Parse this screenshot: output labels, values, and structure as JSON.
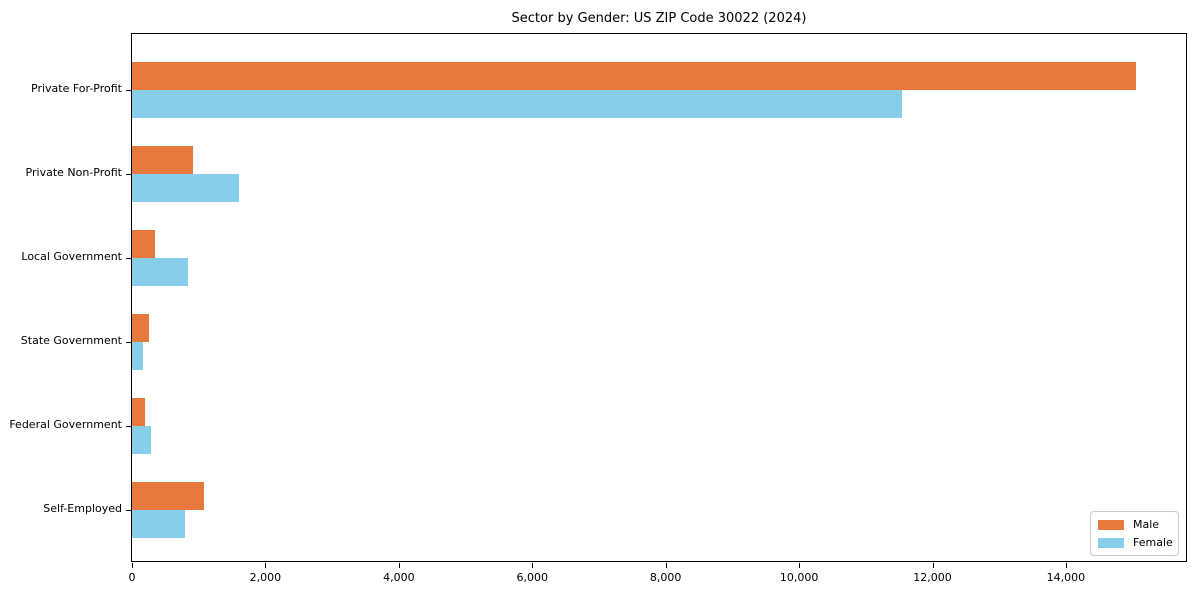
{
  "title": "Sector by Gender: US ZIP Code 30022 (2024)",
  "colors": {
    "male": "#e8793c",
    "female": "#87ceeb",
    "axis": "#000000",
    "background": "#ffffff",
    "legend_border": "#cccccc"
  },
  "chart_data": {
    "type": "bar",
    "orientation": "horizontal",
    "title": "Sector by Gender: US ZIP Code 30022 (2024)",
    "categories": [
      "Private For-Profit",
      "Private Non-Profit",
      "Local Government",
      "State Government",
      "Federal Government",
      "Self-Employed"
    ],
    "series": [
      {
        "name": "Male",
        "color": "#e8793c",
        "values": [
          15050,
          910,
          350,
          250,
          200,
          1080
        ]
      },
      {
        "name": "Female",
        "color": "#87ceeb",
        "values": [
          11550,
          1600,
          840,
          160,
          280,
          800
        ]
      }
    ],
    "xlabel": "",
    "ylabel": "",
    "xlim": [
      0,
      15830
    ],
    "xticks": [
      0,
      2000,
      4000,
      6000,
      8000,
      10000,
      12000,
      14000
    ],
    "xtick_labels": [
      "0",
      "2,000",
      "4,000",
      "6,000",
      "8,000",
      "10,000",
      "12,000",
      "14,000"
    ],
    "grid": false,
    "legend_position": "lower right"
  }
}
